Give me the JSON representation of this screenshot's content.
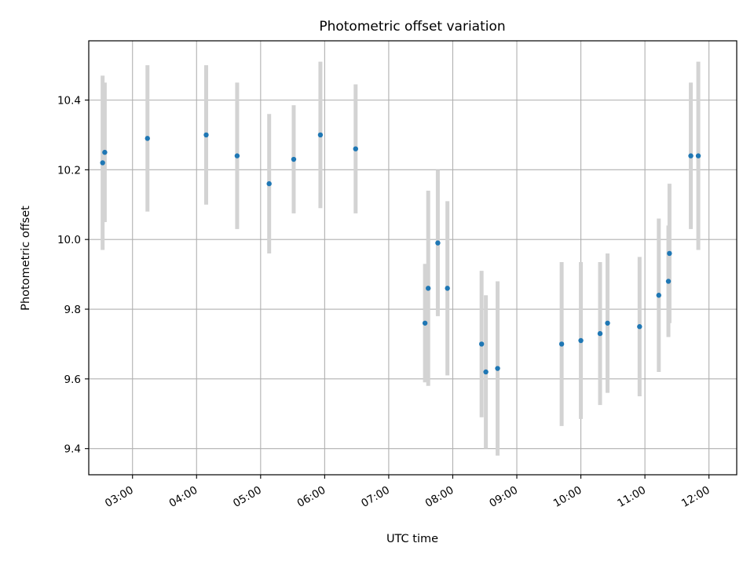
{
  "chart_data": {
    "type": "scatter",
    "title": "Photometric offset variation",
    "xlabel": "UTC time",
    "ylabel": "Photometric offset",
    "x_unit": "UTC hh:mm",
    "xlim": [
      "02:19",
      "12:26"
    ],
    "ylim": [
      9.325,
      10.57
    ],
    "x_ticks": [
      "03:00",
      "04:00",
      "05:00",
      "06:00",
      "07:00",
      "08:00",
      "09:00",
      "10:00",
      "11:00",
      "12:00"
    ],
    "y_ticks": [
      "9.4",
      "9.6",
      "9.8",
      "10.0",
      "10.2",
      "10.4"
    ],
    "grid": true,
    "colors": {
      "marker": "#1f77b4",
      "errorbar": "#d3d3d3",
      "grid": "#b0b0b0"
    },
    "points": [
      {
        "x": "02:32",
        "y": 10.22,
        "yerr_low": 0.25,
        "yerr_high": 0.25
      },
      {
        "x": "02:34",
        "y": 10.25,
        "yerr_low": 0.2,
        "yerr_high": 0.2
      },
      {
        "x": "03:14",
        "y": 10.29,
        "yerr_low": 0.21,
        "yerr_high": 0.21
      },
      {
        "x": "04:09",
        "y": 10.3,
        "yerr_low": 0.2,
        "yerr_high": 0.2
      },
      {
        "x": "04:38",
        "y": 10.24,
        "yerr_low": 0.21,
        "yerr_high": 0.21
      },
      {
        "x": "05:08",
        "y": 10.16,
        "yerr_low": 0.2,
        "yerr_high": 0.2
      },
      {
        "x": "05:31",
        "y": 10.23,
        "yerr_low": 0.155,
        "yerr_high": 0.155
      },
      {
        "x": "05:56",
        "y": 10.3,
        "yerr_low": 0.21,
        "yerr_high": 0.21
      },
      {
        "x": "06:29",
        "y": 10.26,
        "yerr_low": 0.185,
        "yerr_high": 0.185
      },
      {
        "x": "07:34",
        "y": 9.76,
        "yerr_low": 0.17,
        "yerr_high": 0.17
      },
      {
        "x": "07:37",
        "y": 9.86,
        "yerr_low": 0.28,
        "yerr_high": 0.28
      },
      {
        "x": "07:46",
        "y": 9.99,
        "yerr_low": 0.21,
        "yerr_high": 0.21
      },
      {
        "x": "07:55",
        "y": 9.86,
        "yerr_low": 0.25,
        "yerr_high": 0.25
      },
      {
        "x": "08:27",
        "y": 9.7,
        "yerr_low": 0.21,
        "yerr_high": 0.21
      },
      {
        "x": "08:31",
        "y": 9.62,
        "yerr_low": 0.22,
        "yerr_high": 0.22
      },
      {
        "x": "08:42",
        "y": 9.63,
        "yerr_low": 0.25,
        "yerr_high": 0.25
      },
      {
        "x": "09:42",
        "y": 9.7,
        "yerr_low": 0.235,
        "yerr_high": 0.235
      },
      {
        "x": "10:00",
        "y": 9.71,
        "yerr_low": 0.225,
        "yerr_high": 0.225
      },
      {
        "x": "10:18",
        "y": 9.73,
        "yerr_low": 0.205,
        "yerr_high": 0.205
      },
      {
        "x": "10:25",
        "y": 9.76,
        "yerr_low": 0.2,
        "yerr_high": 0.2
      },
      {
        "x": "10:55",
        "y": 9.75,
        "yerr_low": 0.2,
        "yerr_high": 0.2
      },
      {
        "x": "11:13",
        "y": 9.84,
        "yerr_low": 0.22,
        "yerr_high": 0.22
      },
      {
        "x": "11:22",
        "y": 9.88,
        "yerr_low": 0.16,
        "yerr_high": 0.16
      },
      {
        "x": "11:23",
        "y": 9.96,
        "yerr_low": 0.2,
        "yerr_high": 0.2
      },
      {
        "x": "11:43",
        "y": 10.24,
        "yerr_low": 0.21,
        "yerr_high": 0.21
      },
      {
        "x": "11:50",
        "y": 10.24,
        "yerr_low": 0.27,
        "yerr_high": 0.27
      }
    ]
  }
}
